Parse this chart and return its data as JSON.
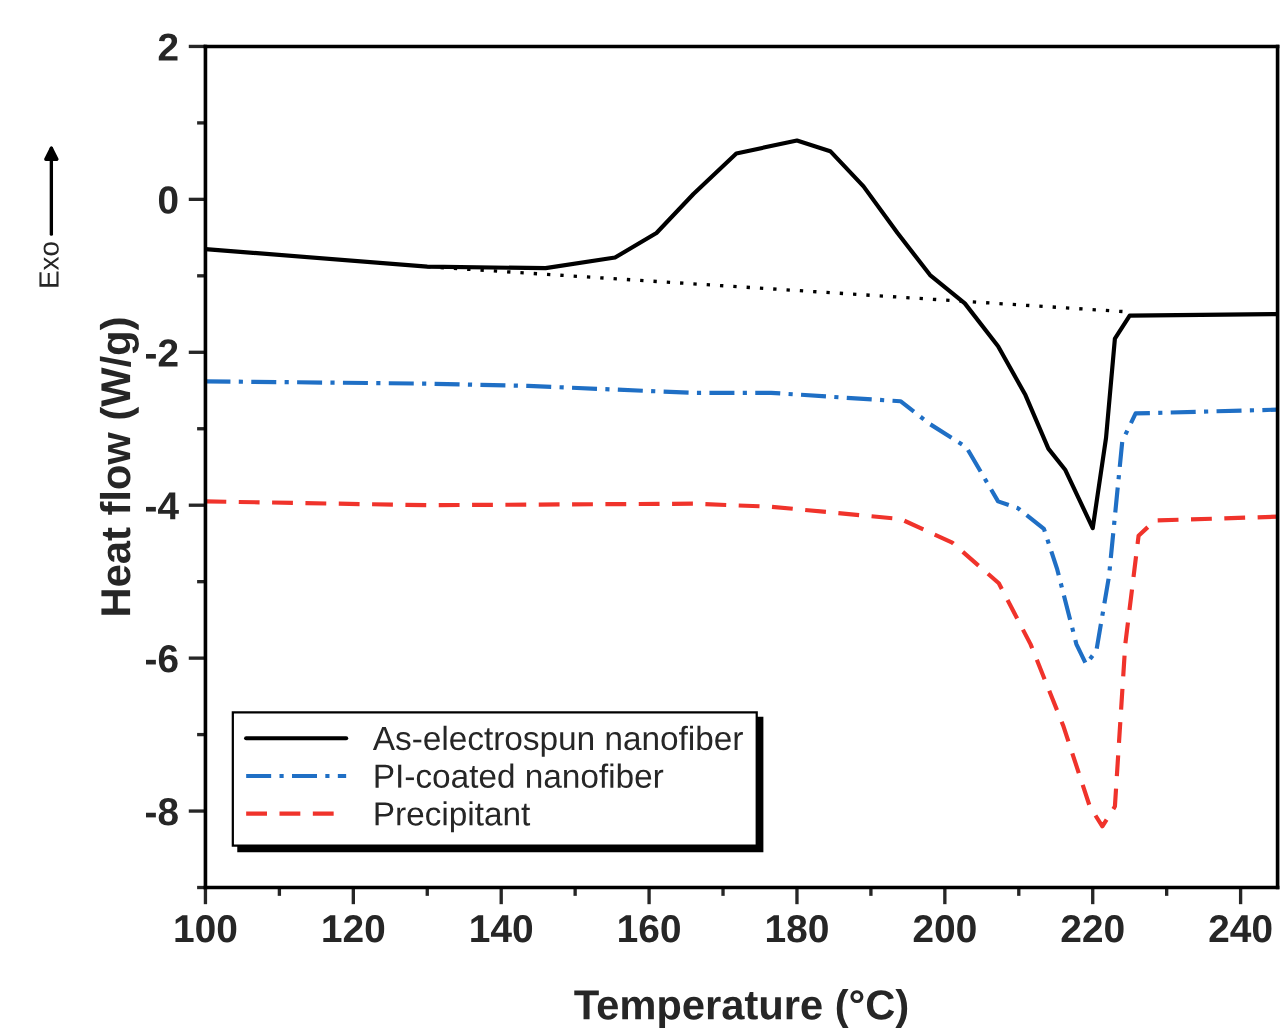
{
  "chart_data": {
    "type": "line",
    "xlabel": "Temperature (°C)",
    "ylabel": "Heat flow (W/g)",
    "annotations": [
      "Exo"
    ],
    "xlim": [
      100,
      245
    ],
    "ylim": [
      -9,
      2
    ],
    "xticks": [
      100,
      120,
      140,
      160,
      180,
      200,
      220,
      240
    ],
    "yticks": [
      -8,
      -6,
      -4,
      -2,
      0,
      2
    ],
    "grid": false,
    "legend": "bottom left",
    "marker": "none",
    "series": [
      {
        "name": "As-electrospun nanofiber",
        "color": "#000000",
        "line_style": "solid",
        "x": [
          100,
          130,
          146,
          155.4,
          161,
          166,
          171.8,
          180,
          184.5,
          189,
          193.6,
          198,
          202.7,
          207.2,
          210.9,
          214,
          216.3,
          220,
          221.8,
          223,
          225,
          245
        ],
        "values": [
          -0.65,
          -0.88,
          -0.9,
          -0.76,
          -0.44,
          0.07,
          0.6,
          0.77,
          0.63,
          0.17,
          -0.44,
          -0.99,
          -1.36,
          -1.92,
          -2.56,
          -3.26,
          -3.54,
          -4.3,
          -3.12,
          -1.82,
          -1.52,
          -1.5
        ]
      },
      {
        "name": "PI-coated nanofiber",
        "color": "#1f6fc5",
        "line_style": "dashdot",
        "x": [
          100,
          130,
          143.6,
          166,
          176.5,
          189,
          194,
          198,
          202.9,
          207.2,
          209.9,
          213.4,
          215.2,
          217.8,
          219.1,
          220.5,
          222.2,
          224,
          225.8,
          245
        ],
        "values": [
          -2.38,
          -2.41,
          -2.44,
          -2.53,
          -2.53,
          -2.61,
          -2.64,
          -2.94,
          -3.24,
          -3.95,
          -4.04,
          -4.31,
          -4.84,
          -5.82,
          -6.08,
          -5.9,
          -4.93,
          -3.16,
          -2.8,
          -2.75
        ]
      },
      {
        "name": "Precipitant",
        "color": "#f0332b",
        "line_style": "dashed",
        "x": [
          100,
          130,
          166,
          176.5,
          194,
          201,
          207.3,
          211.6,
          216,
          219.6,
          221.3,
          223,
          224.4,
          226.2,
          228.4,
          245
        ],
        "values": [
          -3.95,
          -4.0,
          -3.98,
          -4.02,
          -4.18,
          -4.49,
          -5.02,
          -5.82,
          -6.88,
          -7.94,
          -8.2,
          -7.94,
          -5.82,
          -4.4,
          -4.2,
          -4.15
        ]
      },
      {
        "color": "#000000",
        "line_style": "dotted",
        "x": [
          130,
          224.5
        ],
        "values": [
          -0.88,
          -1.47
        ]
      }
    ]
  }
}
